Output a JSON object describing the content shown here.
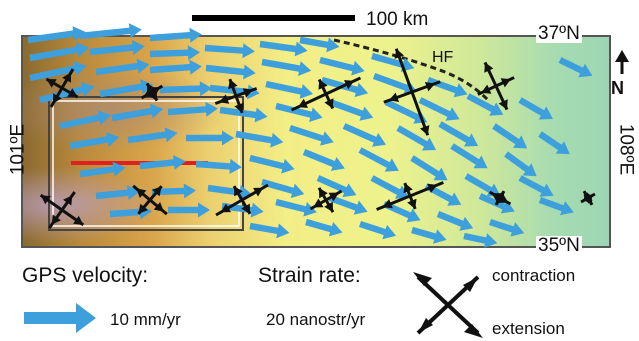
{
  "scale_bar_label": "100 km",
  "latitude_labels": {
    "top": "37ºN",
    "bottom": "35ºN"
  },
  "longitude_labels": {
    "left": "101ºE",
    "right": "108ºE"
  },
  "fault_label": "HF",
  "north_label": "N",
  "legend": {
    "gps_title": "GPS velocity:",
    "gps_value": "10 mm/yr",
    "strain_title": "Strain rate:",
    "strain_value": "20 nanostr/yr",
    "contraction_label": "contraction",
    "extension_label": "extension"
  },
  "colors": {
    "gps_arrow": "#3d9fdb",
    "strain_arrow": "#111111",
    "profile_line": "#e02020",
    "frame": "#555555",
    "fault": "#222222"
  },
  "icons": [
    "north-arrow-icon",
    "gps-arrow-icon",
    "strain-cross-icon"
  ]
}
